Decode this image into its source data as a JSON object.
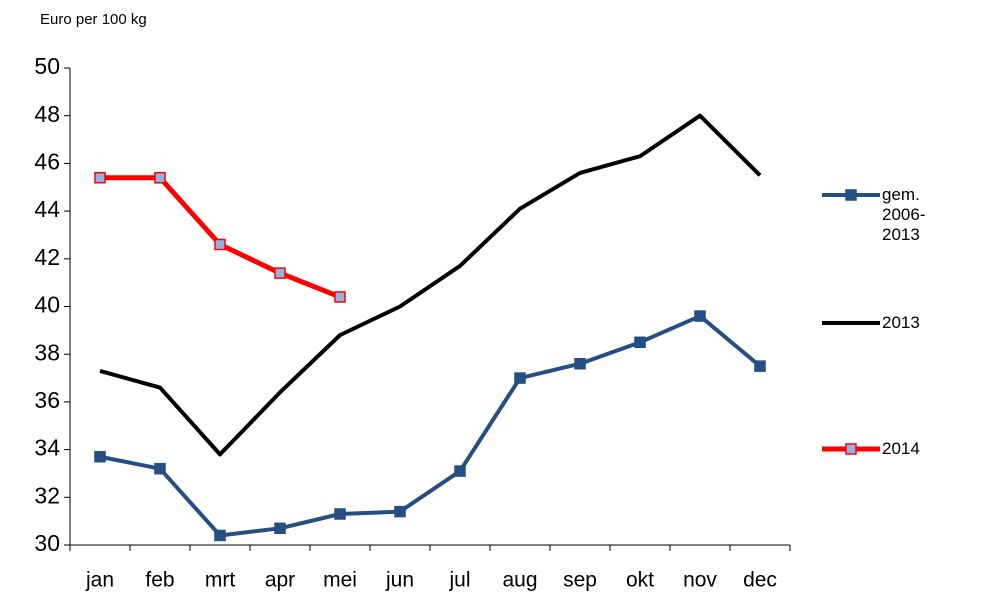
{
  "chart_data": {
    "type": "line",
    "y_label": "Euro per 100 kg",
    "categories": [
      "jan",
      "feb",
      "mrt",
      "apr",
      "mei",
      "jun",
      "jul",
      "aug",
      "sep",
      "okt",
      "nov",
      "dec"
    ],
    "series": [
      {
        "name": "gem. 2006-2013",
        "color": "#254e82",
        "marker": "square",
        "marker_color": "#254e82",
        "values": [
          33.7,
          33.2,
          30.4,
          30.7,
          31.3,
          31.4,
          33.1,
          37.0,
          37.6,
          38.5,
          39.6,
          37.5
        ]
      },
      {
        "name": "2013",
        "color": "#000000",
        "marker": "none",
        "values": [
          37.3,
          36.6,
          33.8,
          36.4,
          38.8,
          40.0,
          41.7,
          44.1,
          45.6,
          46.3,
          48.0,
          45.5
        ]
      },
      {
        "name": "2014",
        "color": "#ff0000",
        "marker": "square",
        "marker_color": "#8eb4e3",
        "values": [
          45.4,
          45.4,
          42.6,
          41.4,
          40.4,
          null,
          null,
          null,
          null,
          null,
          null,
          null
        ]
      }
    ],
    "ylim": [
      30,
      50
    ],
    "yticks": [
      30,
      32,
      34,
      36,
      38,
      40,
      42,
      44,
      46,
      48,
      50
    ],
    "grid": false,
    "legend": "right"
  }
}
